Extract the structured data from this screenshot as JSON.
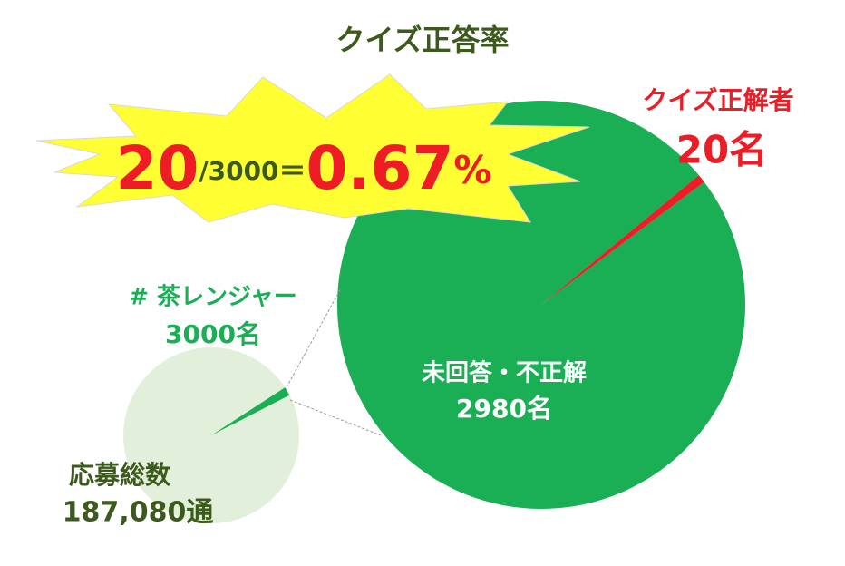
{
  "title": "クイズ正答率",
  "headline": {
    "parts": [
      "20",
      "/3000",
      "＝",
      "0.67",
      "%"
    ]
  },
  "chart_data": [
    {
      "type": "pie",
      "total_label": "応募総数",
      "total": {
        "value": 187080,
        "label": "187,080通"
      },
      "total_color": "#e2efdb",
      "categories": [
        "# 茶レンジャー"
      ],
      "values": [
        3000
      ],
      "value_labels": [
        "3000名"
      ],
      "colors": [
        "#1aae55"
      ]
    },
    {
      "type": "pie",
      "categories": [
        "未回答・不正解",
        "クイズ正解者"
      ],
      "values": [
        2980,
        20
      ],
      "value_labels": [
        "2980名",
        "20名"
      ],
      "colors": [
        "#1aae55",
        "#ee1c25"
      ]
    }
  ]
}
